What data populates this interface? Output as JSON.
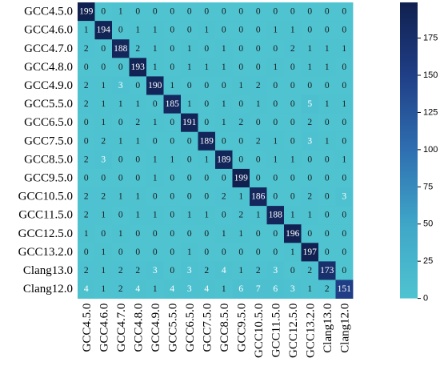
{
  "chart_data": {
    "type": "heatmap",
    "title": "",
    "xlabel": "",
    "ylabel": "",
    "rows": [
      "GCC4.5.0",
      "GCC4.6.0",
      "GCC4.7.0",
      "GCC4.8.0",
      "GCC4.9.0",
      "GCC5.5.0",
      "GCC6.5.0",
      "GCC7.5.0",
      "GCC8.5.0",
      "GCC9.5.0",
      "GCC10.5.0",
      "GCC11.5.0",
      "GCC12.5.0",
      "GCC13.2.0",
      "Clang13.0",
      "Clang12.0"
    ],
    "columns": [
      "GCC4.5.0",
      "GCC4.6.0",
      "GCC4.7.0",
      "GCC4.8.0",
      "GCC4.9.0",
      "GCC5.5.0",
      "GCC6.5.0",
      "GCC7.5.0",
      "GCC8.5.0",
      "GCC9.5.0",
      "GCC10.5.0",
      "GCC11.5.0",
      "GCC12.5.0",
      "GCC13.2.0",
      "Clang13.0",
      "Clang12.0"
    ],
    "values": [
      [
        199,
        0,
        1,
        0,
        0,
        0,
        0,
        0,
        0,
        0,
        0,
        0,
        0,
        0,
        0,
        0
      ],
      [
        1,
        194,
        0,
        1,
        1,
        0,
        0,
        1,
        0,
        0,
        0,
        1,
        1,
        0,
        0,
        0
      ],
      [
        2,
        0,
        188,
        2,
        1,
        0,
        1,
        0,
        1,
        0,
        0,
        0,
        2,
        1,
        1,
        1
      ],
      [
        0,
        0,
        0,
        193,
        1,
        0,
        1,
        1,
        1,
        0,
        0,
        1,
        0,
        1,
        1,
        0
      ],
      [
        2,
        1,
        3,
        0,
        190,
        1,
        0,
        0,
        0,
        1,
        2,
        0,
        0,
        0,
        0,
        0
      ],
      [
        2,
        1,
        1,
        1,
        0,
        185,
        1,
        0,
        1,
        0,
        1,
        0,
        0,
        5,
        1,
        1
      ],
      [
        0,
        1,
        0,
        2,
        1,
        0,
        191,
        0,
        1,
        2,
        0,
        0,
        0,
        2,
        0,
        0
      ],
      [
        0,
        2,
        1,
        1,
        0,
        0,
        0,
        189,
        0,
        0,
        2,
        1,
        0,
        3,
        1,
        0
      ],
      [
        2,
        3,
        0,
        0,
        1,
        1,
        0,
        1,
        189,
        0,
        0,
        1,
        1,
        0,
        0,
        1
      ],
      [
        0,
        0,
        0,
        0,
        1,
        0,
        0,
        0,
        0,
        199,
        0,
        0,
        0,
        0,
        0,
        0
      ],
      [
        2,
        2,
        1,
        1,
        0,
        0,
        0,
        0,
        2,
        1,
        186,
        0,
        0,
        2,
        0,
        3
      ],
      [
        2,
        1,
        0,
        1,
        1,
        0,
        1,
        1,
        0,
        2,
        1,
        188,
        1,
        1,
        0,
        0
      ],
      [
        1,
        0,
        1,
        0,
        0,
        0,
        0,
        0,
        1,
        1,
        0,
        0,
        196,
        0,
        0,
        0
      ],
      [
        0,
        1,
        0,
        0,
        0,
        0,
        1,
        0,
        0,
        0,
        0,
        0,
        1,
        197,
        0,
        0
      ],
      [
        2,
        1,
        2,
        2,
        3,
        0,
        3,
        2,
        4,
        1,
        2,
        3,
        0,
        2,
        173,
        0
      ],
      [
        4,
        1,
        2,
        4,
        1,
        4,
        3,
        4,
        1,
        6,
        7,
        6,
        3,
        1,
        2,
        151
      ]
    ],
    "colorbar": {
      "min": 0,
      "max": 199,
      "ticks": [
        0,
        25,
        50,
        75,
        100,
        125,
        150,
        175
      ]
    },
    "colors": {
      "low": "#4fc3d0",
      "mid": "#2f6fb1",
      "high": "#10204f"
    }
  }
}
